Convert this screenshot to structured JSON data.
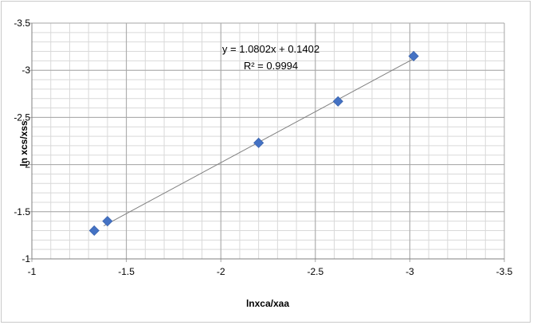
{
  "chart_data": {
    "type": "scatter",
    "xlabel": "lnxca/xaa",
    "ylabel": "ln xcs/xss",
    "xlim": [
      -1,
      -3.5
    ],
    "ylim": [
      -1,
      -3.5
    ],
    "x_ticks": [
      "-1",
      "-1.5",
      "-2",
      "-2.5",
      "-3",
      "-3.5"
    ],
    "y_ticks": [
      "-1",
      "-1.5",
      "-2",
      "-2.5",
      "-3",
      "-3.5"
    ],
    "x_minor_step": -0.1,
    "y_minor_step": -0.1,
    "grid": true,
    "legend": "none",
    "marker_color": "#4472C4",
    "trendline_color": "#808080",
    "series": [
      {
        "x": [
          -1.33,
          -1.4,
          -2.2,
          -2.62,
          -3.02
        ],
        "y": [
          -1.3,
          -1.4,
          -2.23,
          -2.67,
          -3.15
        ]
      }
    ],
    "trendline": {
      "slope": 1.0802,
      "intercept": 0.1402,
      "x_range": [
        -1.38,
        -3.02
      ],
      "equation_text": "y = 1.0802x + 0.1402",
      "r2_text": "R² = 0.9994"
    }
  }
}
